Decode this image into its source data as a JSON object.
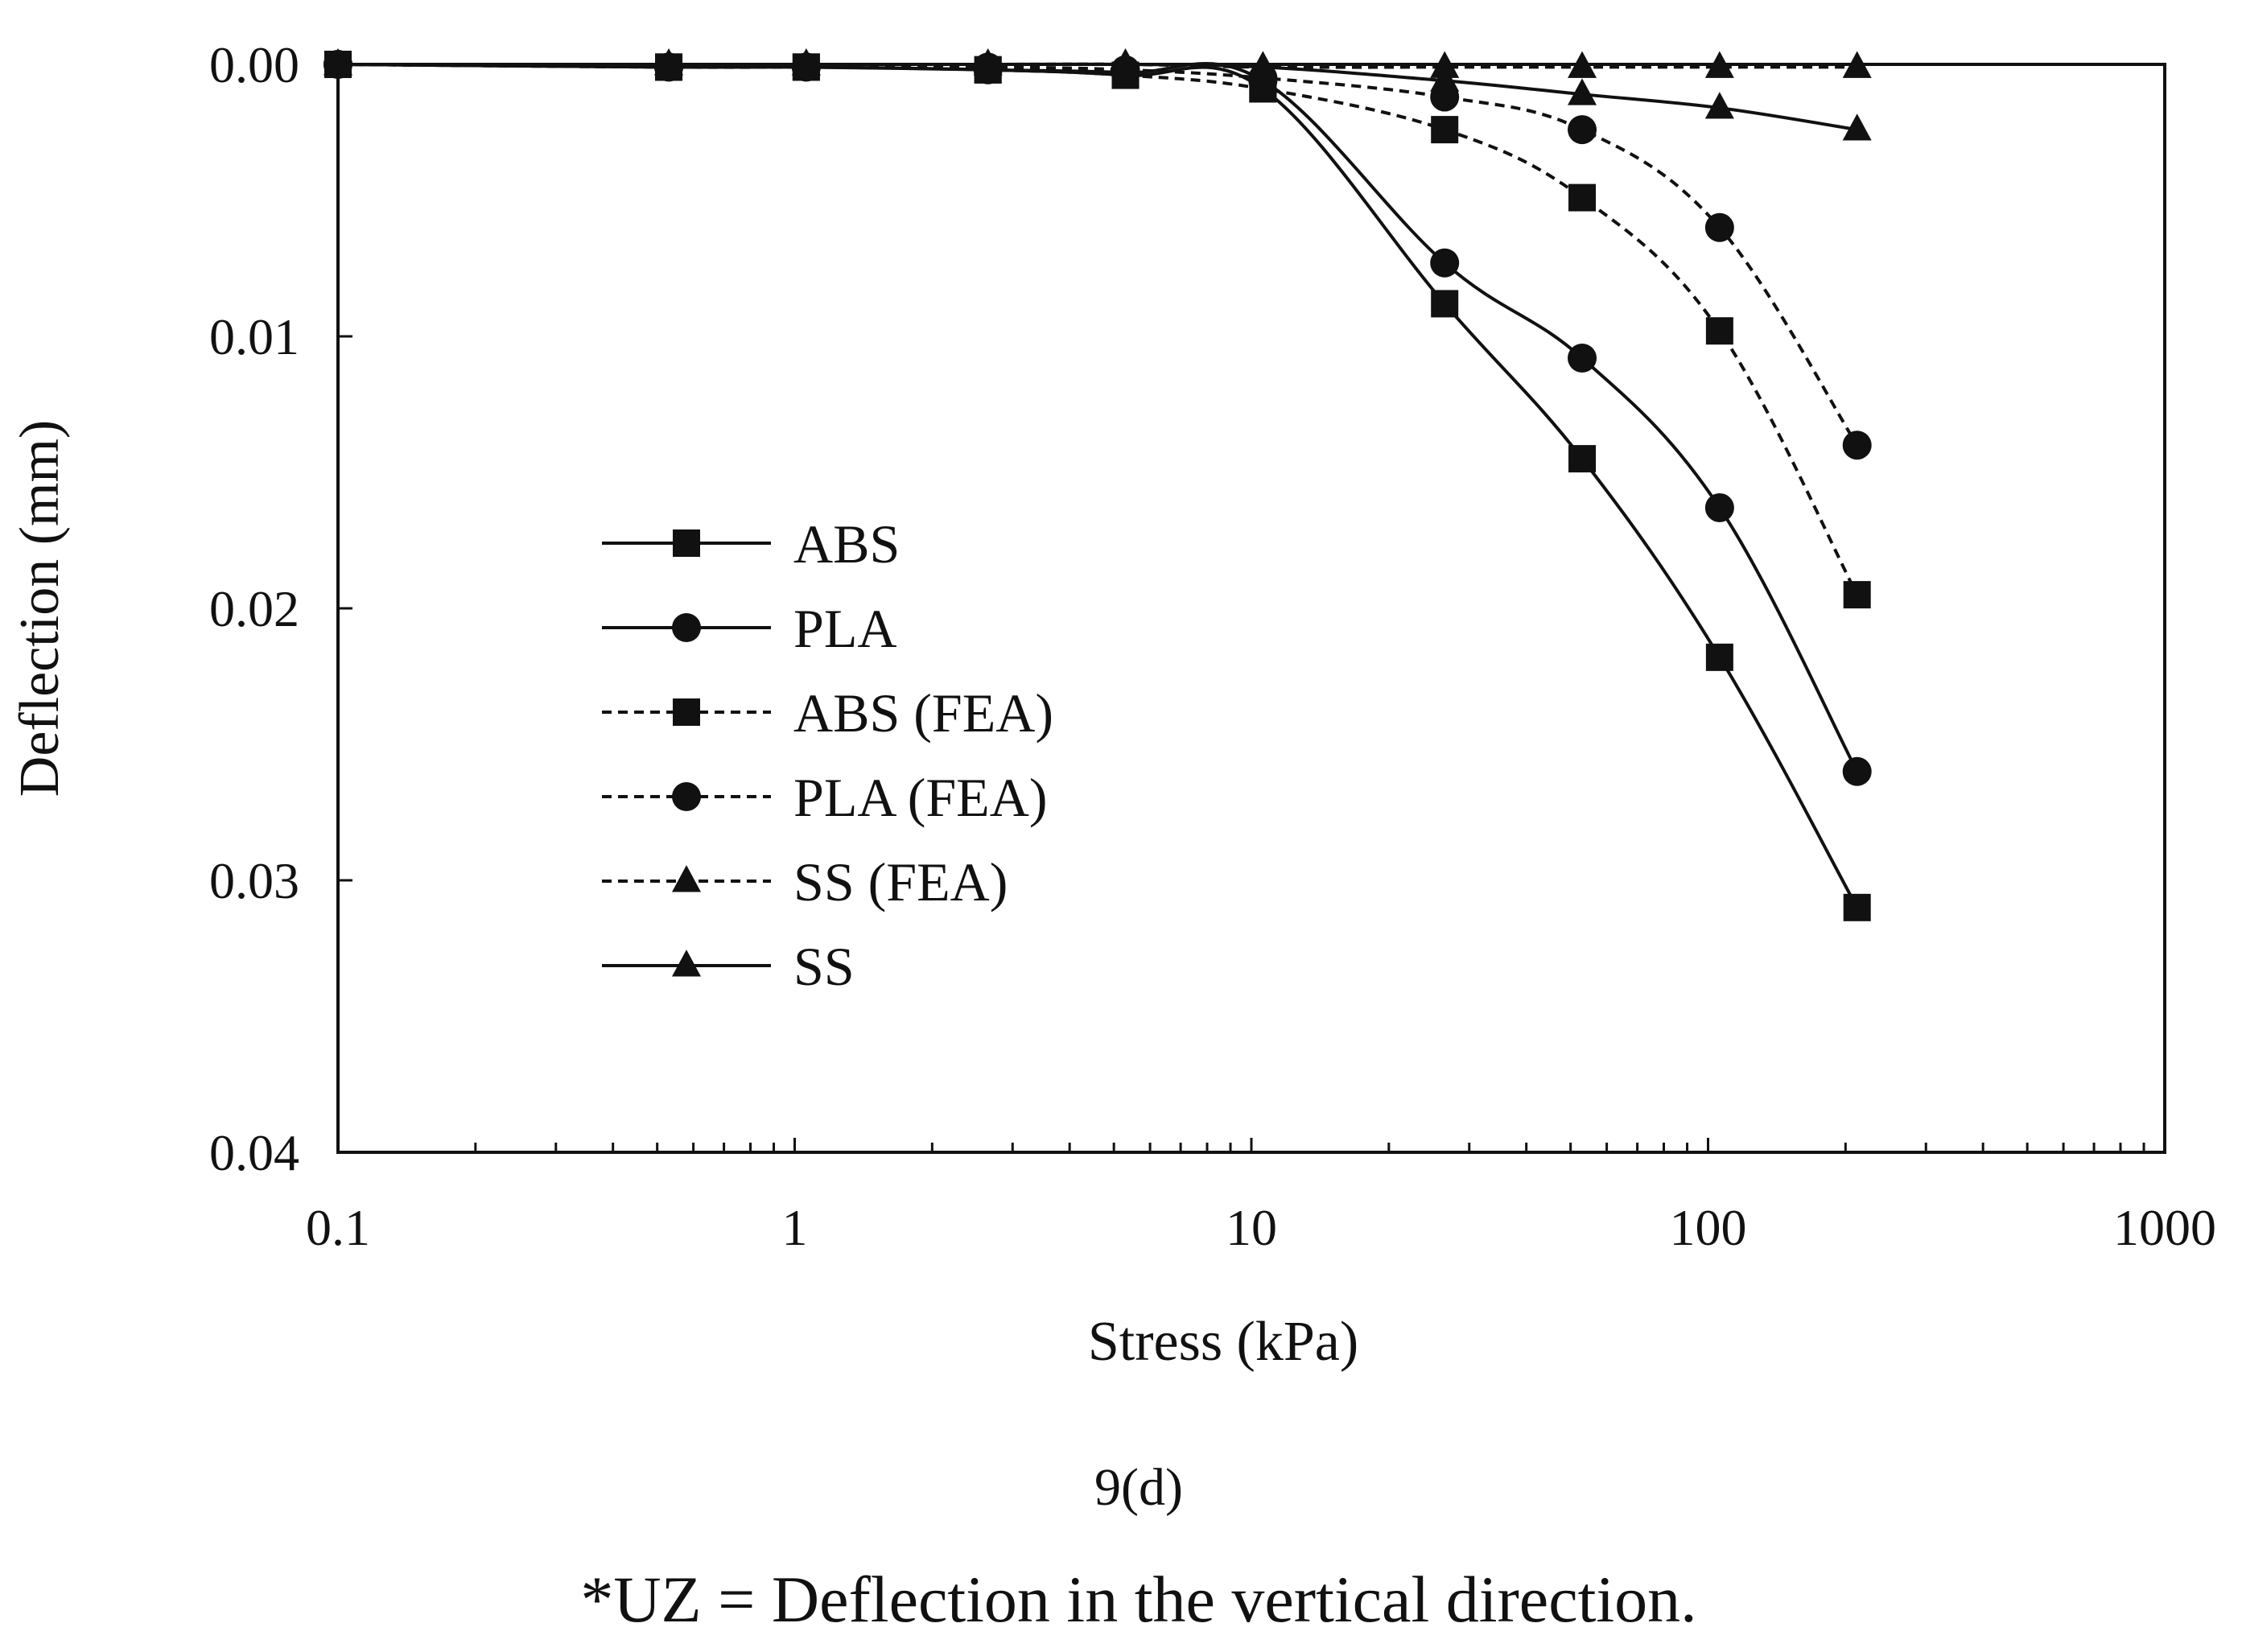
{
  "chart_data": {
    "type": "line",
    "xscale": "log",
    "xlabel": "Stress (kPa)",
    "ylabel": "Deflection (mm)",
    "xlim": [
      0.1,
      1000
    ],
    "ylim": [
      0,
      0.04
    ],
    "y_inverted": true,
    "x_ticks": [
      0.1,
      1,
      10,
      100,
      1000
    ],
    "x_tick_labels": [
      "0.1",
      "1",
      "10",
      "100",
      "1000"
    ],
    "y_ticks": [
      0,
      0.01,
      0.02,
      0.03,
      0.04
    ],
    "y_tick_labels": [
      "0.00",
      "0.01",
      "0.02",
      "0.03",
      "0.04"
    ],
    "grid": false,
    "legend": {
      "placement": "center-left"
    },
    "series": [
      {
        "name": "ABS",
        "style": "solid",
        "marker": "square",
        "x": [
          0.1,
          0.53,
          1.06,
          2.65,
          5.3,
          10.6,
          26.5,
          53,
          106,
          212
        ],
        "y": [
          0.0,
          0.0001,
          0.0001,
          0.0002,
          0.0004,
          0.0009,
          0.0088,
          0.0145,
          0.0218,
          0.031
        ]
      },
      {
        "name": "PLA",
        "style": "solid",
        "marker": "circle",
        "x": [
          0.1,
          0.53,
          1.06,
          2.65,
          5.3,
          10.6,
          26.5,
          53,
          106,
          212
        ],
        "y": [
          0.0,
          0.0001,
          0.0001,
          0.0002,
          0.0003,
          0.0006,
          0.0073,
          0.0108,
          0.0163,
          0.026
        ]
      },
      {
        "name": "ABS (FEA)",
        "style": "dashed",
        "marker": "square",
        "x": [
          0.1,
          0.53,
          1.06,
          2.65,
          5.3,
          10.6,
          26.5,
          53,
          106,
          212
        ],
        "y": [
          0.0,
          0.0001,
          0.0001,
          0.0002,
          0.0004,
          0.0009,
          0.0024,
          0.0049,
          0.0098,
          0.0195
        ]
      },
      {
        "name": "PLA (FEA)",
        "style": "dashed",
        "marker": "circle",
        "x": [
          0.1,
          0.53,
          1.06,
          2.65,
          5.3,
          10.6,
          26.5,
          53,
          106,
          212
        ],
        "y": [
          0.0,
          0.0001,
          0.0001,
          0.0001,
          0.0002,
          0.0005,
          0.0012,
          0.0024,
          0.006,
          0.014
        ]
      },
      {
        "name": "SS (FEA)",
        "style": "dashed",
        "marker": "triangle",
        "x": [
          0.1,
          0.53,
          1.06,
          2.65,
          5.3,
          10.6,
          26.5,
          53,
          106,
          212
        ],
        "y": [
          0.0,
          0.0,
          0.0,
          0.0,
          0.0,
          0.0001,
          0.0001,
          0.0001,
          0.0001,
          0.0001
        ]
      },
      {
        "name": "SS",
        "style": "solid",
        "marker": "triangle",
        "x": [
          0.1,
          0.53,
          1.06,
          2.65,
          5.3,
          10.6,
          26.5,
          53,
          106,
          212
        ],
        "y": [
          0.0,
          0.0,
          0.0,
          0.0,
          0.0,
          0.0001,
          0.0006,
          0.0011,
          0.0016,
          0.0024
        ]
      }
    ]
  },
  "caption": {
    "label": "9(d)",
    "footnote": "*UZ = Deflection in the vertical direction."
  },
  "colors": {
    "ink": "#111111",
    "background": "#ffffff"
  }
}
